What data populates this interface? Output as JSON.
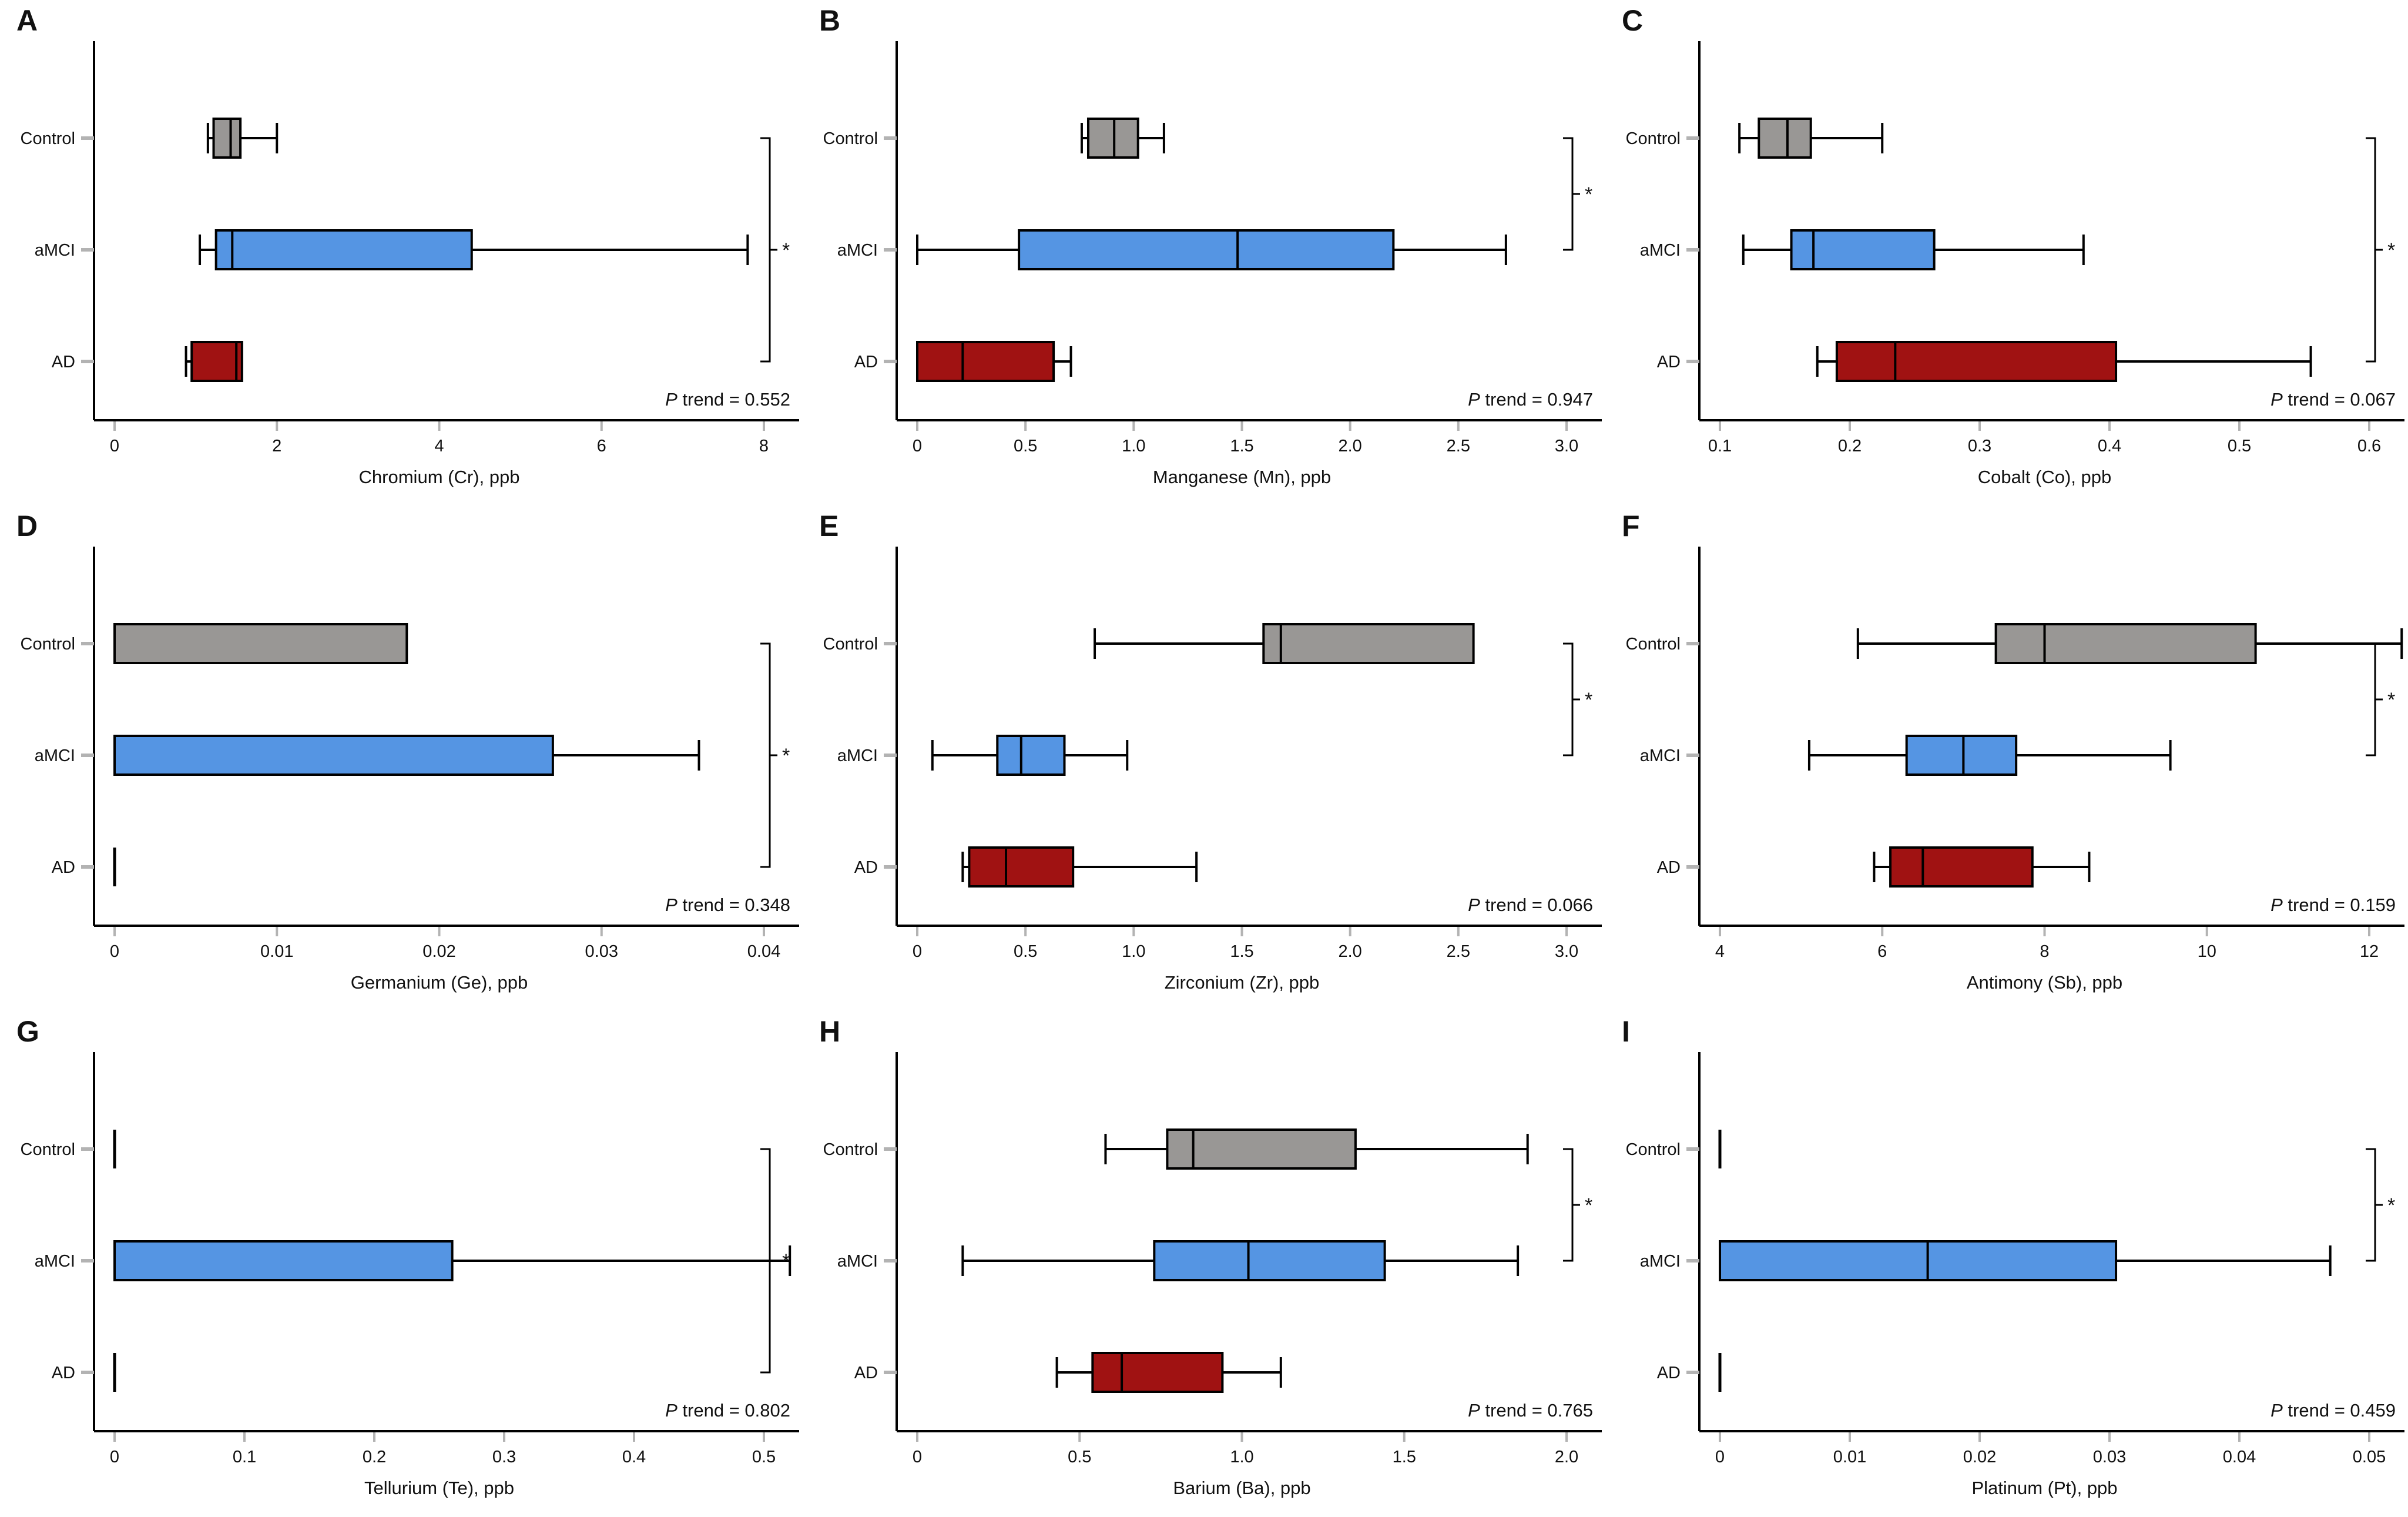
{
  "figure": {
    "categories": [
      "Control",
      "aMCI",
      "AD"
    ],
    "groups": [
      {
        "name": "Control",
        "color": "#999795"
      },
      {
        "name": "aMCI",
        "color": "#5595e3"
      },
      {
        "name": "AD",
        "color": "#a01212"
      }
    ],
    "box_border_color": "#000000",
    "axis_color": "#000000",
    "tick_mark_color": "#b3b3b3",
    "significance_symbol": "*",
    "unit": "ppb"
  },
  "chart_data": [
    {
      "type": "boxplot-horizontal",
      "letter": "A",
      "xlabel": "Chromium (Cr), ppb",
      "p_trend": "P trend = 0.552",
      "axis": {
        "min": 0,
        "max": 8,
        "ticks": [
          0,
          2,
          4,
          6,
          8
        ],
        "tick_labels": [
          "0",
          "2",
          "4",
          "6",
          "8"
        ]
      },
      "boxes": [
        {
          "group": "Control",
          "whisker_low": 1.15,
          "q1": 1.22,
          "median": 1.43,
          "q3": 1.55,
          "whisker_high": 2.0,
          "collapsed": false
        },
        {
          "group": "aMCI",
          "whisker_low": 1.05,
          "q1": 1.25,
          "median": 1.45,
          "q3": 4.4,
          "whisker_high": 7.8,
          "collapsed": false
        },
        {
          "group": "AD",
          "whisker_low": 0.88,
          "q1": 0.95,
          "median": 1.5,
          "q3": 1.57,
          "whisker_high": null,
          "collapsed": false
        }
      ],
      "significance": {
        "from": "Control",
        "to": "AD",
        "symbol": "*"
      }
    },
    {
      "type": "boxplot-horizontal",
      "letter": "B",
      "xlabel": "Manganese (Mn), ppb",
      "p_trend": "P trend = 0.947",
      "axis": {
        "min": 0,
        "max": 3,
        "ticks": [
          0,
          0.5,
          1.0,
          1.5,
          2.0,
          2.5,
          3.0
        ],
        "tick_labels": [
          "0",
          "0.5",
          "1.0",
          "1.5",
          "2.0",
          "2.5",
          "3.0"
        ]
      },
      "boxes": [
        {
          "group": "Control",
          "whisker_low": 0.76,
          "q1": 0.79,
          "median": 0.91,
          "q3": 1.02,
          "whisker_high": 1.14,
          "collapsed": false
        },
        {
          "group": "aMCI",
          "whisker_low": 0.0,
          "q1": 0.47,
          "median": 1.48,
          "q3": 2.2,
          "whisker_high": 2.72,
          "collapsed": false
        },
        {
          "group": "AD",
          "whisker_low": null,
          "q1": 0.0,
          "median": 0.21,
          "q3": 0.63,
          "whisker_high": 0.71,
          "collapsed": false
        }
      ],
      "significance": {
        "from": "Control",
        "to": "aMCI",
        "symbol": "*"
      }
    },
    {
      "type": "boxplot-horizontal",
      "letter": "C",
      "xlabel": "Cobalt (Co), ppb",
      "p_trend": "P trend = 0.067",
      "axis": {
        "min": 0.1,
        "max": 0.6,
        "ticks": [
          0.1,
          0.2,
          0.3,
          0.4,
          0.5,
          0.6
        ],
        "tick_labels": [
          "0.1",
          "0.2",
          "0.3",
          "0.4",
          "0.5",
          "0.6"
        ]
      },
      "boxes": [
        {
          "group": "Control",
          "whisker_low": 0.115,
          "q1": 0.13,
          "median": 0.152,
          "q3": 0.17,
          "whisker_high": 0.225,
          "collapsed": false
        },
        {
          "group": "aMCI",
          "whisker_low": 0.118,
          "q1": 0.155,
          "median": 0.172,
          "q3": 0.265,
          "whisker_high": 0.38,
          "collapsed": false
        },
        {
          "group": "AD",
          "whisker_low": 0.175,
          "q1": 0.19,
          "median": 0.235,
          "q3": 0.405,
          "whisker_high": 0.555,
          "collapsed": false
        }
      ],
      "significance": {
        "from": "Control",
        "to": "AD",
        "symbol": "*"
      }
    },
    {
      "type": "boxplot-horizontal",
      "letter": "D",
      "xlabel": "Germanium (Ge), ppb",
      "p_trend": "P trend = 0.348",
      "axis": {
        "min": 0,
        "max": 0.04,
        "ticks": [
          0,
          0.01,
          0.02,
          0.03,
          0.04
        ],
        "tick_labels": [
          "0",
          "0.01",
          "0.02",
          "0.03",
          "0.04"
        ]
      },
      "boxes": [
        {
          "group": "Control",
          "whisker_low": null,
          "q1": 0.0,
          "median": 0.0,
          "q3": 0.018,
          "whisker_high": null,
          "collapsed": false
        },
        {
          "group": "aMCI",
          "whisker_low": null,
          "q1": 0.0,
          "median": 0.0,
          "q3": 0.027,
          "whisker_high": 0.036,
          "collapsed": false
        },
        {
          "group": "AD",
          "whisker_low": null,
          "q1": 0.0,
          "median": 0.0,
          "q3": 0.0,
          "whisker_high": null,
          "collapsed": true,
          "collapsed_value": 0
        }
      ],
      "significance": {
        "from": "Control",
        "to": "AD",
        "symbol": "*"
      }
    },
    {
      "type": "boxplot-horizontal",
      "letter": "E",
      "xlabel": "Zirconium (Zr), ppb",
      "p_trend": "P trend = 0.066",
      "axis": {
        "min": 0,
        "max": 3,
        "ticks": [
          0,
          0.5,
          1.0,
          1.5,
          2.0,
          2.5,
          3.0
        ],
        "tick_labels": [
          "0",
          "0.5",
          "1.0",
          "1.5",
          "2.0",
          "2.5",
          "3.0"
        ]
      },
      "boxes": [
        {
          "group": "Control",
          "whisker_low": 0.82,
          "q1": 1.6,
          "median": 1.68,
          "q3": 2.57,
          "whisker_high": null,
          "collapsed": false
        },
        {
          "group": "aMCI",
          "whisker_low": 0.07,
          "q1": 0.37,
          "median": 0.48,
          "q3": 0.68,
          "whisker_high": 0.97,
          "collapsed": false
        },
        {
          "group": "AD",
          "whisker_low": 0.21,
          "q1": 0.24,
          "median": 0.41,
          "q3": 0.72,
          "whisker_high": 1.29,
          "collapsed": false
        }
      ],
      "significance": {
        "from": "Control",
        "to": "aMCI",
        "symbol": "*"
      }
    },
    {
      "type": "boxplot-horizontal",
      "letter": "F",
      "xlabel": "Antimony (Sb), ppb",
      "p_trend": "P trend = 0.159",
      "axis": {
        "min": 4,
        "max": 12,
        "ticks": [
          4,
          6,
          8,
          10,
          12
        ],
        "tick_labels": [
          "4",
          "6",
          "8",
          "10",
          "12"
        ]
      },
      "boxes": [
        {
          "group": "Control",
          "whisker_low": 5.7,
          "q1": 7.4,
          "median": 8.0,
          "q3": 10.6,
          "whisker_high": 12.4,
          "collapsed": false
        },
        {
          "group": "aMCI",
          "whisker_low": 5.1,
          "q1": 6.3,
          "median": 7.0,
          "q3": 7.65,
          "whisker_high": 9.55,
          "collapsed": false
        },
        {
          "group": "AD",
          "whisker_low": 5.9,
          "q1": 6.1,
          "median": 6.5,
          "q3": 7.85,
          "whisker_high": 8.55,
          "collapsed": false
        }
      ],
      "significance": {
        "from": "Control",
        "to": "aMCI",
        "symbol": "*"
      }
    },
    {
      "type": "boxplot-horizontal",
      "letter": "G",
      "xlabel": "Tellurium (Te), ppb",
      "p_trend": "P trend = 0.802",
      "axis": {
        "min": 0,
        "max": 0.5,
        "ticks": [
          0,
          0.1,
          0.2,
          0.3,
          0.4,
          0.5
        ],
        "tick_labels": [
          "0",
          "0.1",
          "0.2",
          "0.3",
          "0.4",
          "0.5"
        ]
      },
      "boxes": [
        {
          "group": "Control",
          "whisker_low": null,
          "q1": 0.0,
          "median": 0.0,
          "q3": 0.0,
          "whisker_high": null,
          "collapsed": true,
          "collapsed_value": 0
        },
        {
          "group": "aMCI",
          "whisker_low": null,
          "q1": 0.0,
          "median": 0.0,
          "q3": 0.26,
          "whisker_high": 0.52,
          "collapsed": false
        },
        {
          "group": "AD",
          "whisker_low": null,
          "q1": 0.0,
          "median": 0.0,
          "q3": 0.0,
          "whisker_high": null,
          "collapsed": true,
          "collapsed_value": 0
        }
      ],
      "significance": {
        "from": "Control",
        "to": "AD",
        "symbol": "*"
      }
    },
    {
      "type": "boxplot-horizontal",
      "letter": "H",
      "xlabel": "Barium (Ba), ppb",
      "p_trend": "P trend = 0.765",
      "axis": {
        "min": 0,
        "max": 2,
        "ticks": [
          0,
          0.5,
          1.0,
          1.5,
          2.0
        ],
        "tick_labels": [
          "0",
          "0.5",
          "1.0",
          "1.5",
          "2.0"
        ]
      },
      "boxes": [
        {
          "group": "Control",
          "whisker_low": 0.58,
          "q1": 0.77,
          "median": 0.85,
          "q3": 1.35,
          "whisker_high": 1.88,
          "collapsed": false
        },
        {
          "group": "aMCI",
          "whisker_low": 0.14,
          "q1": 0.73,
          "median": 1.02,
          "q3": 1.44,
          "whisker_high": 1.85,
          "collapsed": false
        },
        {
          "group": "AD",
          "whisker_low": 0.43,
          "q1": 0.54,
          "median": 0.63,
          "q3": 0.94,
          "whisker_high": 1.12,
          "collapsed": false
        }
      ],
      "significance": {
        "from": "Control",
        "to": "aMCI",
        "symbol": "*"
      }
    },
    {
      "type": "boxplot-horizontal",
      "letter": "I",
      "xlabel": "Platinum (Pt), ppb",
      "p_trend": "P trend = 0.459",
      "axis": {
        "min": 0,
        "max": 0.05,
        "ticks": [
          0,
          0.01,
          0.02,
          0.03,
          0.04,
          0.05
        ],
        "tick_labels": [
          "0",
          "0.01",
          "0.02",
          "0.03",
          "0.04",
          "0.05"
        ]
      },
      "boxes": [
        {
          "group": "Control",
          "whisker_low": null,
          "q1": 0.0,
          "median": 0.0,
          "q3": 0.0,
          "whisker_high": null,
          "collapsed": true,
          "collapsed_value": 0
        },
        {
          "group": "aMCI",
          "whisker_low": null,
          "q1": 0.0,
          "median": 0.016,
          "q3": 0.0305,
          "whisker_high": 0.047,
          "collapsed": false
        },
        {
          "group": "AD",
          "whisker_low": null,
          "q1": 0.0,
          "median": 0.0,
          "q3": 0.0,
          "whisker_high": null,
          "collapsed": true,
          "collapsed_value": 0
        }
      ],
      "significance": {
        "from": "Control",
        "to": "aMCI",
        "symbol": "*"
      }
    }
  ]
}
